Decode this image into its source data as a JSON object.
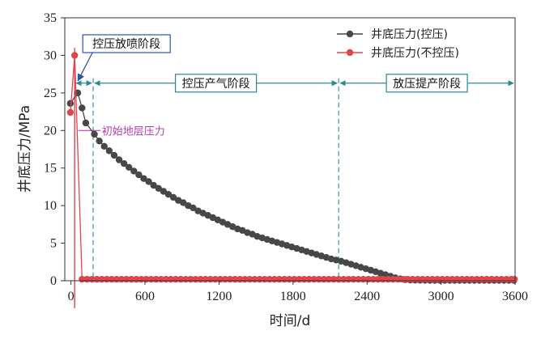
{
  "chart_data": {
    "type": "scatter",
    "title": "",
    "xlabel": "时间/d",
    "ylabel": "井底压力/MPa",
    "xlim": [
      -50,
      3600
    ],
    "ylim": [
      0,
      35
    ],
    "xticks": [
      0,
      600,
      1200,
      1800,
      2400,
      3000,
      3600
    ],
    "yticks": [
      0,
      5,
      10,
      15,
      20,
      25,
      30,
      35
    ],
    "grid": false,
    "legend_position": "top-right",
    "series": [
      {
        "name": "井底压力(控压)",
        "color": "#474747",
        "marker": "circle",
        "points": [
          [
            -5,
            23.6
          ],
          [
            55,
            25.0
          ],
          [
            90,
            23.0
          ],
          [
            120,
            21.0
          ],
          [
            190,
            19.5
          ],
          [
            230,
            18.6
          ],
          [
            270,
            17.9
          ],
          [
            310,
            17.3
          ],
          [
            350,
            16.7
          ],
          [
            390,
            16.1
          ],
          [
            430,
            15.6
          ],
          [
            470,
            15.1
          ],
          [
            510,
            14.6
          ],
          [
            550,
            14.1
          ],
          [
            590,
            13.6
          ],
          [
            630,
            13.2
          ],
          [
            670,
            12.7
          ],
          [
            710,
            12.3
          ],
          [
            750,
            11.9
          ],
          [
            790,
            11.5
          ],
          [
            830,
            11.1
          ],
          [
            870,
            10.7
          ],
          [
            910,
            10.4
          ],
          [
            950,
            10.0
          ],
          [
            990,
            9.7
          ],
          [
            1030,
            9.3
          ],
          [
            1070,
            9.0
          ],
          [
            1110,
            8.7
          ],
          [
            1150,
            8.4
          ],
          [
            1190,
            8.1
          ],
          [
            1230,
            7.8
          ],
          [
            1270,
            7.5
          ],
          [
            1310,
            7.2
          ],
          [
            1350,
            6.9
          ],
          [
            1390,
            6.7
          ],
          [
            1430,
            6.4
          ],
          [
            1470,
            6.2
          ],
          [
            1510,
            5.9
          ],
          [
            1550,
            5.7
          ],
          [
            1590,
            5.5
          ],
          [
            1630,
            5.3
          ],
          [
            1670,
            5.1
          ],
          [
            1710,
            4.9
          ],
          [
            1750,
            4.7
          ],
          [
            1790,
            4.5
          ],
          [
            1830,
            4.3
          ],
          [
            1870,
            4.1
          ],
          [
            1910,
            3.9
          ],
          [
            1950,
            3.7
          ],
          [
            1990,
            3.5
          ],
          [
            2030,
            3.3
          ],
          [
            2070,
            3.1
          ],
          [
            2110,
            2.9
          ],
          [
            2150,
            2.75
          ],
          [
            2190,
            2.6
          ],
          [
            2230,
            2.4
          ],
          [
            2270,
            2.2
          ],
          [
            2310,
            2.0
          ],
          [
            2350,
            1.8
          ],
          [
            2390,
            1.6
          ],
          [
            2430,
            1.4
          ],
          [
            2470,
            1.2
          ],
          [
            2510,
            1.0
          ],
          [
            2550,
            0.8
          ],
          [
            2590,
            0.6
          ],
          [
            2630,
            0.4
          ],
          [
            2670,
            0.25
          ],
          [
            2710,
            0.15
          ],
          [
            2750,
            0.1
          ],
          [
            2790,
            0.08
          ],
          [
            2830,
            0.07
          ],
          [
            2870,
            0.06
          ],
          [
            2910,
            0.05
          ],
          [
            2950,
            0.05
          ],
          [
            2990,
            0.05
          ],
          [
            3030,
            0.05
          ],
          [
            3070,
            0.05
          ],
          [
            3110,
            0.05
          ],
          [
            3150,
            0.05
          ],
          [
            3190,
            0.05
          ],
          [
            3230,
            0.05
          ],
          [
            3270,
            0.05
          ],
          [
            3310,
            0.05
          ],
          [
            3350,
            0.05
          ],
          [
            3390,
            0.05
          ],
          [
            3430,
            0.05
          ],
          [
            3470,
            0.05
          ],
          [
            3510,
            0.05
          ],
          [
            3550,
            0.05
          ],
          [
            3590,
            0.05
          ]
        ]
      },
      {
        "name": "井底压力(不控压)",
        "color": "#e0454e",
        "marker": "circle",
        "points": [
          [
            -5,
            22.4
          ],
          [
            30,
            30.0
          ],
          [
            90,
            0.2
          ],
          [
            130,
            0.2
          ],
          [
            170,
            0.2
          ],
          [
            210,
            0.2
          ],
          [
            250,
            0.2
          ],
          [
            290,
            0.2
          ],
          [
            330,
            0.2
          ],
          [
            370,
            0.2
          ],
          [
            410,
            0.2
          ],
          [
            450,
            0.2
          ],
          [
            490,
            0.2
          ],
          [
            530,
            0.2
          ],
          [
            570,
            0.2
          ],
          [
            610,
            0.2
          ],
          [
            650,
            0.2
          ],
          [
            690,
            0.2
          ],
          [
            730,
            0.2
          ],
          [
            770,
            0.2
          ],
          [
            810,
            0.2
          ],
          [
            850,
            0.2
          ],
          [
            890,
            0.2
          ],
          [
            930,
            0.2
          ],
          [
            970,
            0.2
          ],
          [
            1010,
            0.2
          ],
          [
            1050,
            0.2
          ],
          [
            1090,
            0.2
          ],
          [
            1130,
            0.2
          ],
          [
            1170,
            0.2
          ],
          [
            1210,
            0.2
          ],
          [
            1250,
            0.2
          ],
          [
            1290,
            0.2
          ],
          [
            1330,
            0.2
          ],
          [
            1370,
            0.2
          ],
          [
            1410,
            0.2
          ],
          [
            1450,
            0.2
          ],
          [
            1490,
            0.2
          ],
          [
            1530,
            0.2
          ],
          [
            1570,
            0.2
          ],
          [
            1610,
            0.2
          ],
          [
            1650,
            0.2
          ],
          [
            1690,
            0.2
          ],
          [
            1730,
            0.2
          ],
          [
            1770,
            0.2
          ],
          [
            1810,
            0.2
          ],
          [
            1850,
            0.2
          ],
          [
            1890,
            0.2
          ],
          [
            1930,
            0.2
          ],
          [
            1970,
            0.2
          ],
          [
            2010,
            0.2
          ],
          [
            2050,
            0.2
          ],
          [
            2090,
            0.2
          ],
          [
            2130,
            0.2
          ],
          [
            2170,
            0.2
          ],
          [
            2210,
            0.2
          ],
          [
            2250,
            0.2
          ],
          [
            2290,
            0.2
          ],
          [
            2330,
            0.2
          ],
          [
            2370,
            0.2
          ],
          [
            2410,
            0.2
          ],
          [
            2450,
            0.2
          ],
          [
            2490,
            0.2
          ],
          [
            2530,
            0.2
          ],
          [
            2570,
            0.2
          ],
          [
            2610,
            0.2
          ],
          [
            2650,
            0.2
          ],
          [
            2690,
            0.2
          ],
          [
            2730,
            0.2
          ],
          [
            2770,
            0.2
          ],
          [
            2810,
            0.2
          ],
          [
            2850,
            0.2
          ],
          [
            2890,
            0.2
          ],
          [
            2930,
            0.2
          ],
          [
            2970,
            0.2
          ],
          [
            3010,
            0.2
          ],
          [
            3050,
            0.2
          ],
          [
            3090,
            0.2
          ],
          [
            3130,
            0.2
          ],
          [
            3170,
            0.2
          ],
          [
            3210,
            0.2
          ],
          [
            3250,
            0.2
          ],
          [
            3290,
            0.2
          ],
          [
            3330,
            0.2
          ],
          [
            3370,
            0.2
          ],
          [
            3410,
            0.2
          ],
          [
            3450,
            0.2
          ],
          [
            3490,
            0.2
          ],
          [
            3530,
            0.2
          ],
          [
            3570,
            0.2
          ],
          [
            3595,
            0.2
          ]
        ]
      }
    ],
    "phase_lines": [
      {
        "x": 30,
        "color": "#e0454e"
      },
      {
        "x": 180,
        "color": "#2a8a94"
      },
      {
        "x": 2170,
        "color": "#2a8a94"
      }
    ],
    "phases": [
      {
        "label": "控压放喷阶段",
        "from": 30,
        "to": 180,
        "boxed_outside": true
      },
      {
        "label": "控压产气阶段",
        "from": 180,
        "to": 2170
      },
      {
        "label": "放压提产阶段",
        "from": 2170,
        "to": 3600
      }
    ],
    "phase_arrow_y": 26.3,
    "annotations": [
      {
        "text": "初始地层压力",
        "y": 20
      }
    ]
  }
}
